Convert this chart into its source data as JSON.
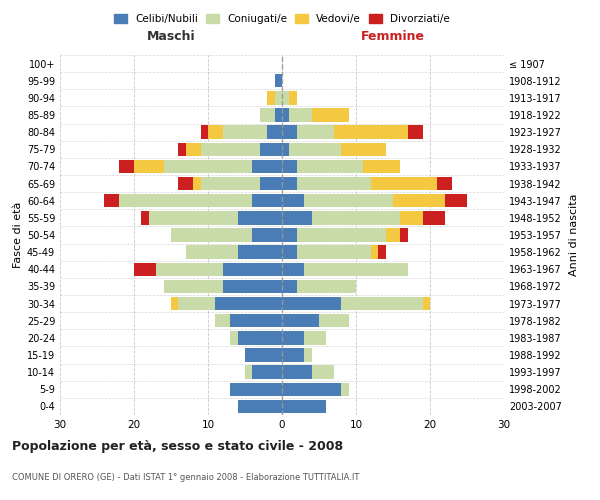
{
  "age_groups": [
    "0-4",
    "5-9",
    "10-14",
    "15-19",
    "20-24",
    "25-29",
    "30-34",
    "35-39",
    "40-44",
    "45-49",
    "50-54",
    "55-59",
    "60-64",
    "65-69",
    "70-74",
    "75-79",
    "80-84",
    "85-89",
    "90-94",
    "95-99",
    "100+"
  ],
  "birth_years": [
    "2003-2007",
    "1998-2002",
    "1993-1997",
    "1988-1992",
    "1983-1987",
    "1978-1982",
    "1973-1977",
    "1968-1972",
    "1963-1967",
    "1958-1962",
    "1953-1957",
    "1948-1952",
    "1943-1947",
    "1938-1942",
    "1933-1937",
    "1928-1932",
    "1923-1927",
    "1918-1922",
    "1913-1917",
    "1908-1912",
    "≤ 1907"
  ],
  "colors": {
    "celibi": "#4a7db5",
    "coniugati": "#c8dba8",
    "vedovi": "#f5c842",
    "divorziati": "#cc2020"
  },
  "male": {
    "celibi": [
      6,
      7,
      4,
      5,
      6,
      7,
      9,
      8,
      8,
      6,
      4,
      6,
      4,
      3,
      4,
      3,
      2,
      1,
      0,
      1,
      0
    ],
    "coniugati": [
      0,
      0,
      1,
      0,
      1,
      2,
      5,
      8,
      9,
      7,
      11,
      12,
      18,
      8,
      12,
      8,
      6,
      2,
      1,
      0,
      0
    ],
    "vedovi": [
      0,
      0,
      0,
      0,
      0,
      0,
      1,
      0,
      0,
      0,
      0,
      0,
      0,
      1,
      4,
      2,
      2,
      0,
      1,
      0,
      0
    ],
    "divorziati": [
      0,
      0,
      0,
      0,
      0,
      0,
      0,
      0,
      3,
      0,
      0,
      1,
      2,
      2,
      2,
      1,
      1,
      0,
      0,
      0,
      0
    ]
  },
  "female": {
    "celibi": [
      6,
      8,
      4,
      3,
      3,
      5,
      8,
      2,
      3,
      2,
      2,
      4,
      3,
      2,
      2,
      1,
      2,
      1,
      0,
      0,
      0
    ],
    "coniugati": [
      0,
      1,
      3,
      1,
      3,
      4,
      11,
      8,
      14,
      10,
      12,
      12,
      12,
      10,
      9,
      7,
      5,
      3,
      1,
      0,
      0
    ],
    "vedovi": [
      0,
      0,
      0,
      0,
      0,
      0,
      1,
      0,
      0,
      1,
      2,
      3,
      7,
      9,
      5,
      6,
      10,
      5,
      1,
      0,
      0
    ],
    "divorziati": [
      0,
      0,
      0,
      0,
      0,
      0,
      0,
      0,
      0,
      1,
      1,
      3,
      3,
      2,
      0,
      0,
      2,
      0,
      0,
      0,
      0
    ]
  },
  "xlim": 30,
  "title": "Popolazione per età, sesso e stato civile - 2008",
  "subtitle": "COMUNE DI ORERO (GE) - Dati ISTAT 1° gennaio 2008 - Elaborazione TUTTITALIA.IT",
  "ylabel_left": "Fasce di età",
  "ylabel_right": "Anni di nascita",
  "xlabel_left": "Maschi",
  "xlabel_right": "Femmine",
  "legend_labels": [
    "Celibi/Nubili",
    "Coniugati/e",
    "Vedovi/e",
    "Divorziati/e"
  ],
  "bg_color": "#ffffff",
  "grid_color": "#bbbbbb"
}
